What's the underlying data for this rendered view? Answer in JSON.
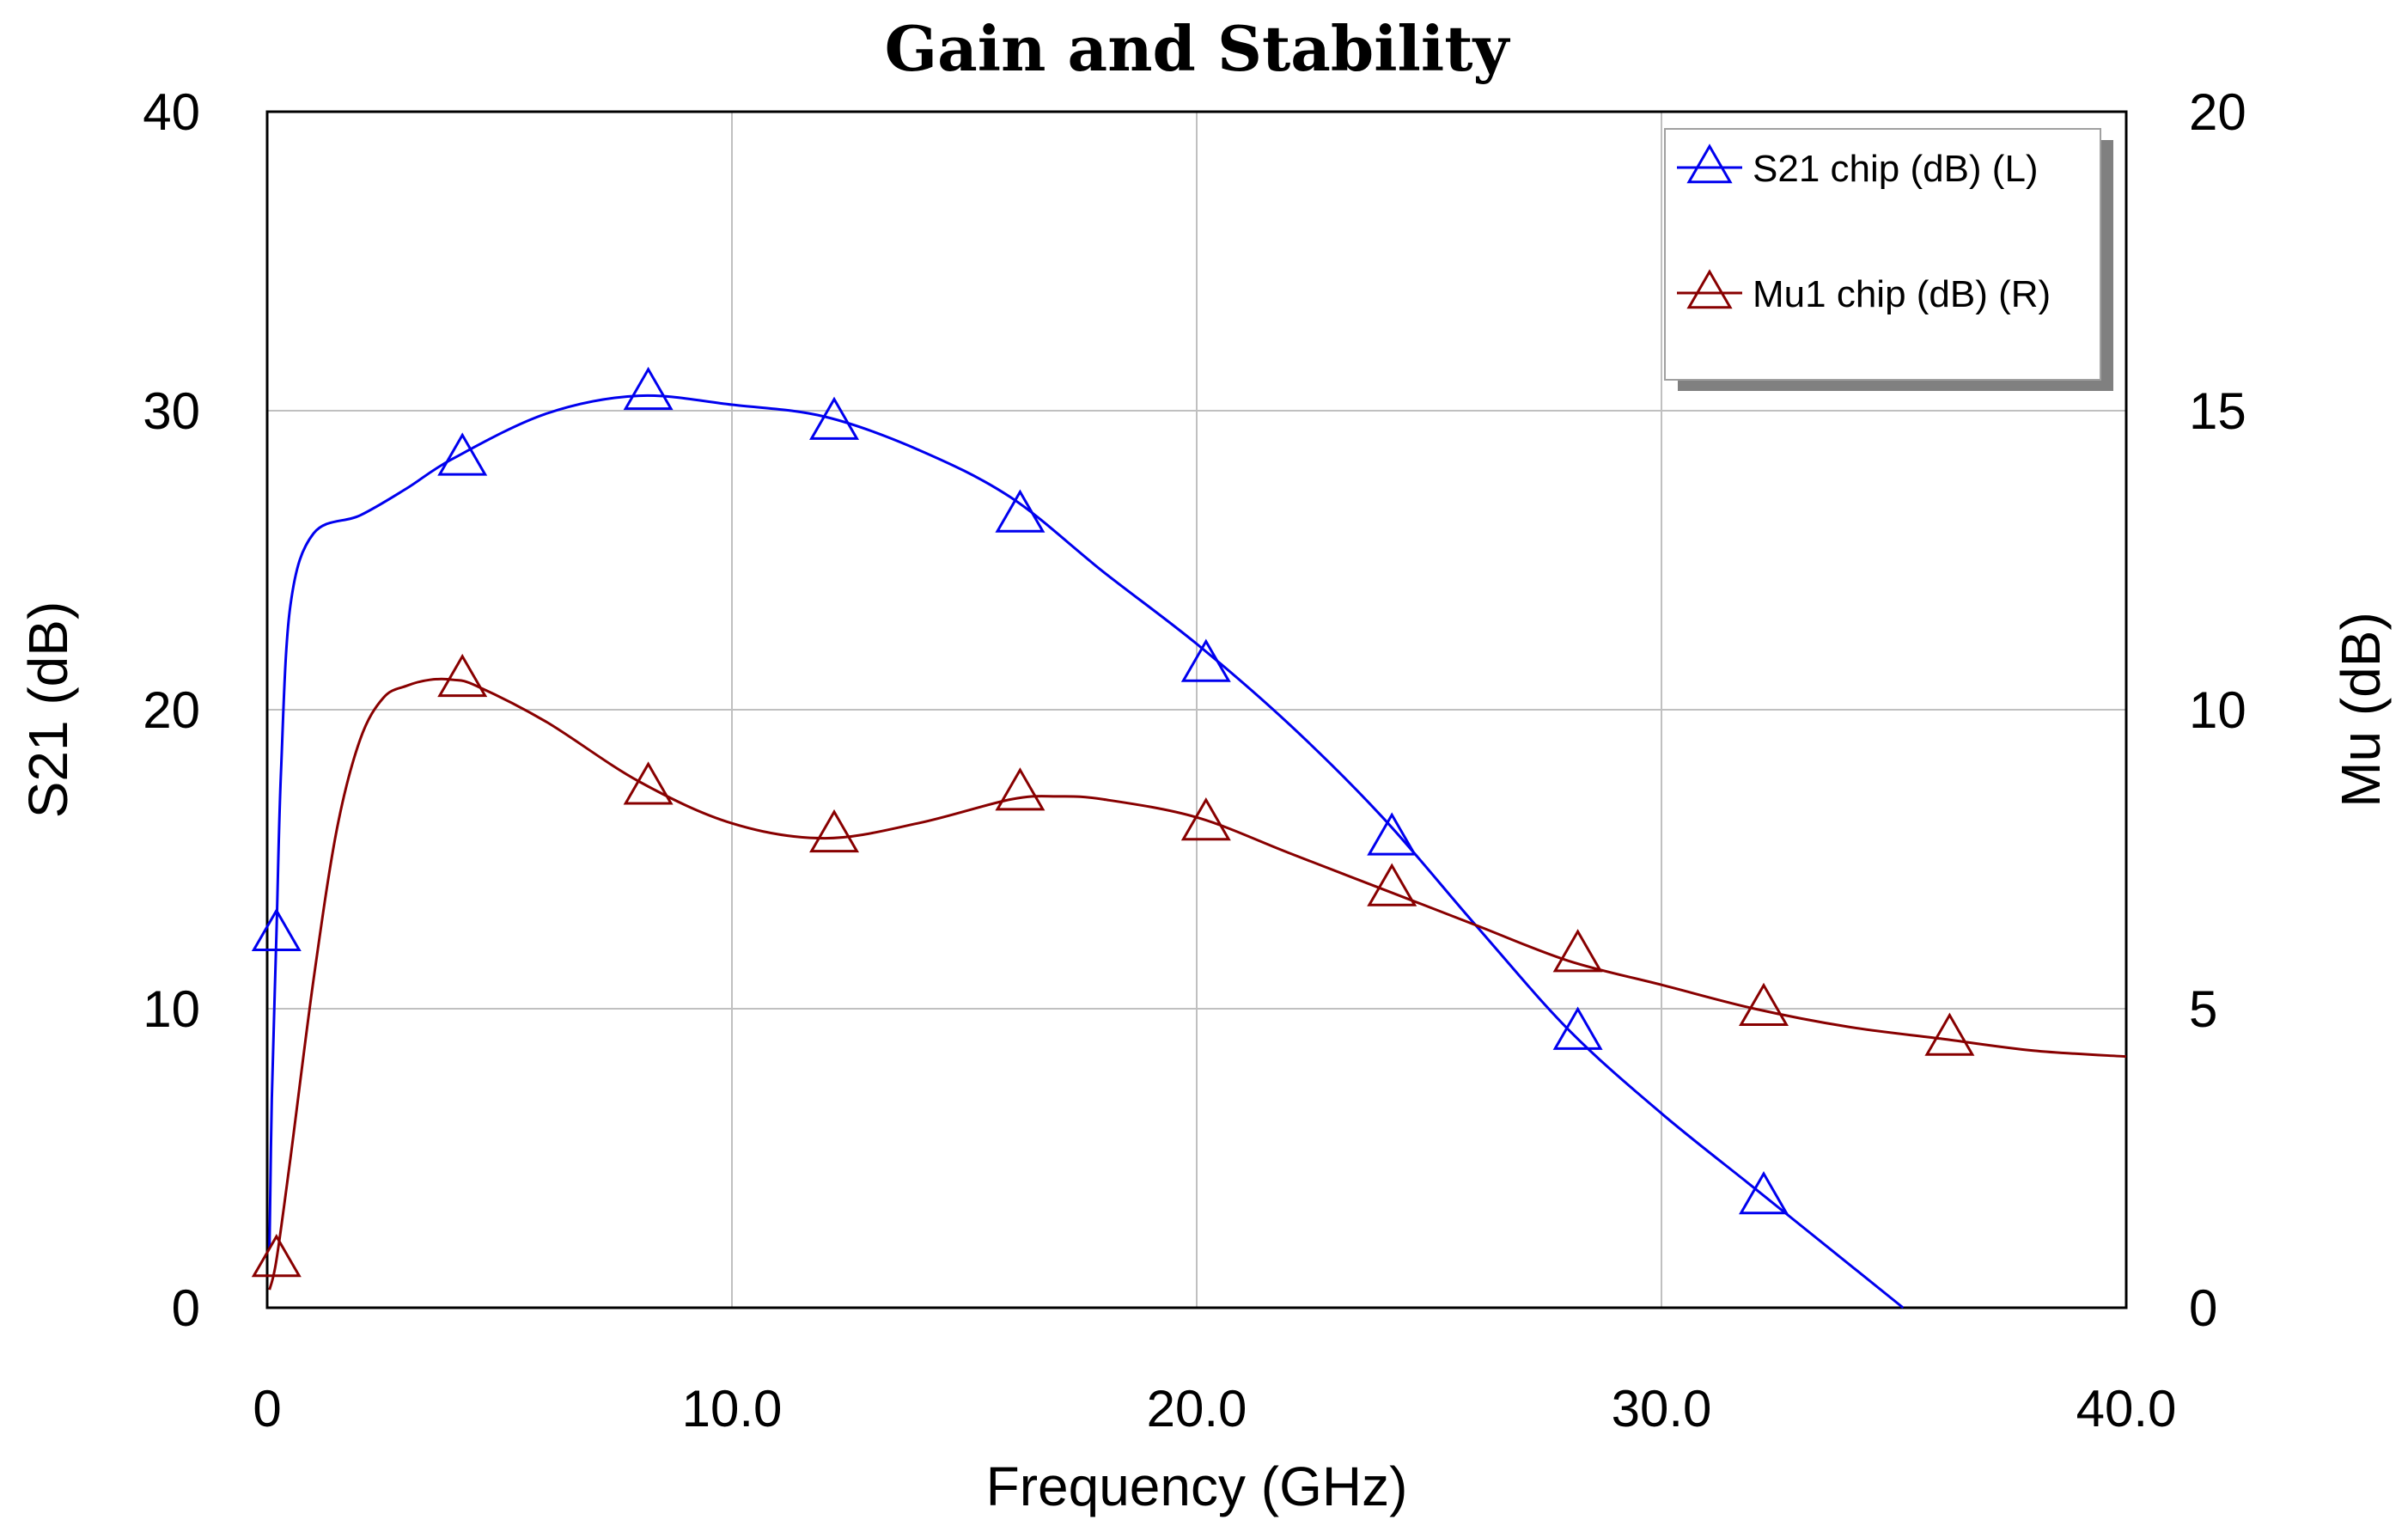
{
  "chart_data": {
    "type": "line",
    "title": "Gain and Stability",
    "xlabel": "Frequency (GHz)",
    "ylabel_left": "S21 (dB)",
    "ylabel_right": "Mu (dB)",
    "xlim": [
      0,
      40
    ],
    "ylim_left": [
      0,
      40
    ],
    "ylim_right": [
      0,
      20
    ],
    "x_ticks": [
      "0",
      "10.0",
      "20.0",
      "30.0",
      "40.0"
    ],
    "x_tick_values": [
      0,
      10,
      20,
      30,
      40
    ],
    "y_left_ticks": [
      "0",
      "10",
      "20",
      "30",
      "40"
    ],
    "y_left_tick_values": [
      0,
      10,
      20,
      30,
      40
    ],
    "y_right_ticks": [
      "0",
      "5",
      "10",
      "15",
      "20"
    ],
    "y_right_tick_values": [
      0,
      5,
      10,
      15,
      20
    ],
    "grid": true,
    "legend_position": "top-right",
    "series": [
      {
        "name": "S21 chip (dB) (L)",
        "axis": "left",
        "color": "#0000ee",
        "marker": "triangle",
        "x": [
          0.05,
          0.1,
          0.2,
          0.3,
          0.5,
          1.0,
          2.0,
          3.0,
          4.0,
          6.0,
          8.0,
          10.0,
          12.0,
          14.0,
          16.0,
          18.0,
          20.0,
          22.0,
          24.0,
          26.0,
          28.0,
          30.0,
          32.0,
          34.0,
          35.2
        ],
        "y": [
          2.0,
          7.0,
          12.5,
          18.0,
          23.5,
          25.9,
          26.5,
          27.4,
          28.4,
          29.9,
          30.5,
          30.2,
          29.8,
          28.7,
          27.1,
          24.6,
          22.2,
          19.5,
          16.4,
          12.8,
          9.3,
          6.5,
          4.0,
          1.5,
          0.0
        ],
        "markers_x": [
          0.2,
          4.2,
          8.2,
          12.2,
          16.2,
          20.2,
          24.2,
          28.2,
          32.2
        ],
        "markers_y": [
          12.5,
          28.4,
          30.6,
          29.6,
          26.5,
          21.5,
          15.7,
          9.2,
          3.7
        ]
      },
      {
        "name": "Mu1 chip (dB) (R)",
        "axis": "right",
        "color": "#880000",
        "marker": "triangle",
        "x": [
          0.05,
          0.2,
          0.5,
          1.0,
          1.5,
          2.0,
          2.5,
          3.0,
          3.5,
          4.0,
          4.5,
          6.0,
          8.0,
          10.0,
          12.0,
          14.0,
          16.0,
          17.0,
          18.0,
          20.0,
          22.0,
          24.0,
          26.0,
          28.0,
          30.0,
          32.0,
          34.0,
          36.0,
          38.0,
          40.0
        ],
        "y": [
          0.3,
          0.8,
          2.5,
          5.5,
          8.0,
          9.5,
          10.2,
          10.4,
          10.5,
          10.5,
          10.4,
          9.8,
          8.8,
          8.1,
          7.85,
          8.1,
          8.5,
          8.55,
          8.5,
          8.2,
          7.6,
          7.0,
          6.4,
          5.8,
          5.4,
          5.0,
          4.7,
          4.5,
          4.3,
          4.2
        ],
        "markers_x": [
          0.2,
          4.2,
          8.2,
          12.2,
          16.2,
          20.2,
          24.2,
          28.2,
          32.2,
          36.2
        ],
        "markers_y": [
          0.8,
          10.5,
          8.7,
          7.9,
          8.6,
          8.1,
          7.0,
          5.9,
          5.0,
          4.5
        ]
      }
    ]
  }
}
